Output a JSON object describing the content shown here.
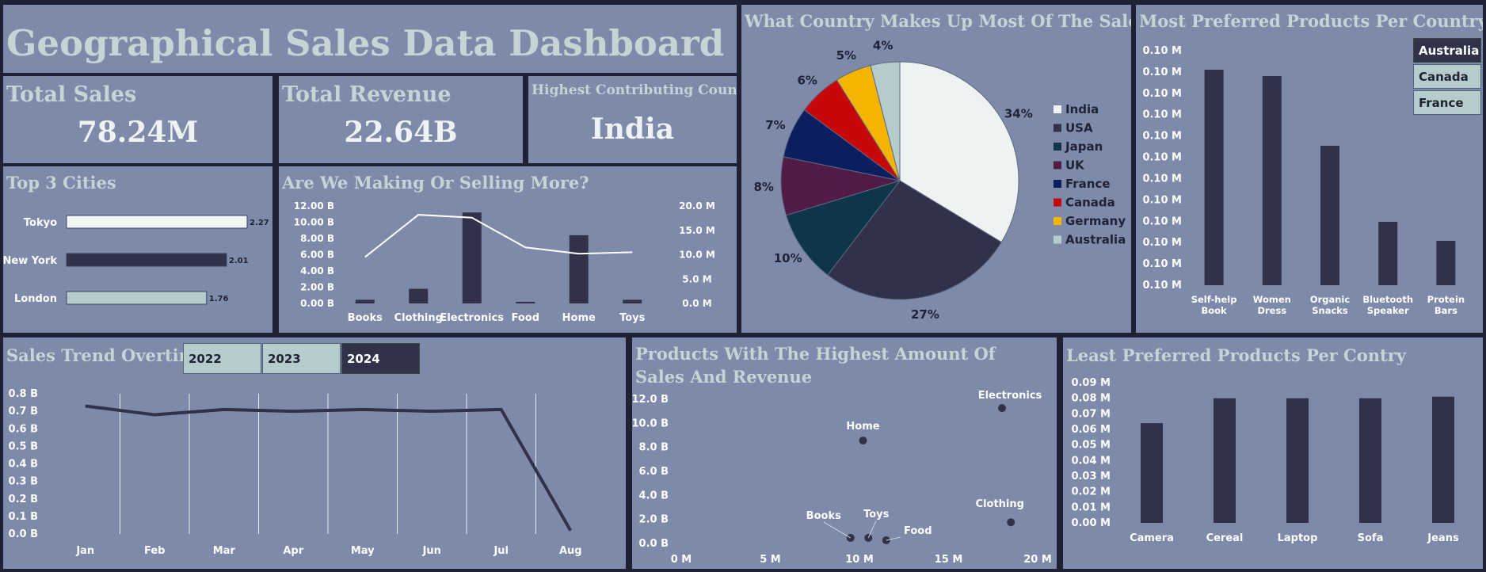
{
  "dashboard_title": "Geographical Sales Data Dashboard",
  "kpis": {
    "total_sales": {
      "label": "Total Sales",
      "value": "78.24M"
    },
    "total_revenue": {
      "label": "Total Revenue",
      "value": "22.64B"
    },
    "top_country": {
      "label": "Highest Contributing Country",
      "value": "India"
    }
  },
  "colors": {
    "panel": "#7d8aa9",
    "dark_bar": "#31324a",
    "light_bar": "#f4f6f6",
    "pale_bar": "#b6cbcb",
    "title": "#c6d4d6",
    "background": "#1f2234"
  },
  "panel_titles": {
    "top_cities": "Top 3 Cities",
    "making_selling": "Are We Making Or Selling More?",
    "country_share": "What Country Makes Up Most Of The Sales?",
    "preferred": "Most Preferred Products Per Country",
    "trend": "Sales Trend Overtime",
    "scatter": "Products With The Highest Amount Of Sales And Revenue",
    "least": "Least Preferred Products Per Contry"
  },
  "year_slicer": {
    "options": [
      "2022",
      "2023",
      "2024"
    ],
    "selected": "2024"
  },
  "country_slicer": {
    "options": [
      "Australia",
      "Canada",
      "France"
    ],
    "selected": "Australia"
  },
  "chart_data": [
    {
      "id": "top_cities",
      "type": "bar",
      "orientation": "horizontal",
      "categories": [
        "Tokyo",
        "New York",
        "London"
      ],
      "values": [
        2.27,
        2.01,
        1.76
      ],
      "value_labels": [
        "2.27",
        "2.01",
        "1.76"
      ],
      "bar_colors": [
        "#f4f6f6",
        "#31324a",
        "#b6cbcb"
      ],
      "xlim": [
        0,
        2.27
      ]
    },
    {
      "id": "making_selling",
      "type": "bar",
      "categories": [
        "Books",
        "Clothing",
        "Electronics",
        "Food",
        "Home",
        "Toys"
      ],
      "series": [
        {
          "axis": "left",
          "kind": "bar",
          "values": [
            0.45,
            1.8,
            11.2,
            0.2,
            8.4,
            0.45
          ]
        },
        {
          "axis": "right",
          "kind": "line",
          "values": [
            9.5,
            18.2,
            17.6,
            11.5,
            10.2,
            10.5
          ]
        }
      ],
      "y_left": {
        "ticks": [
          "0.00 B",
          "2.00 B",
          "4.00 B",
          "6.00 B",
          "8.00 B",
          "10.00 B",
          "12.00 B"
        ],
        "lim": [
          0,
          12
        ]
      },
      "y_right": {
        "ticks": [
          "0.0 M",
          "5.0 M",
          "10.0 M",
          "15.0 M",
          "20.0 M"
        ],
        "lim": [
          0,
          20
        ]
      }
    },
    {
      "id": "country_share",
      "type": "pie",
      "labels": [
        "India",
        "USA",
        "Japan",
        "UK",
        "France",
        "Canada",
        "Germany",
        "Australia"
      ],
      "values": [
        34,
        27,
        10,
        8,
        7,
        6,
        5,
        4
      ],
      "value_labels": [
        "34%",
        "27%",
        "10%",
        "8%",
        "7%",
        "6%",
        "5%",
        "4%"
      ],
      "colors": [
        "#eef2f2",
        "#31324a",
        "#0f3548",
        "#521b45",
        "#0b1f60",
        "#c8070b",
        "#f5b400",
        "#b6cbcb"
      ],
      "legend": "right"
    },
    {
      "id": "preferred",
      "type": "bar",
      "categories": [
        "Self-help Book",
        "Women Dress",
        "Organic Snacks",
        "Bluetooth Speaker",
        "Protein Bars"
      ],
      "values": [
        0.1027,
        0.1026,
        0.1015,
        0.1003,
        0.1
      ],
      "ytick_labels": [
        "0.10 M",
        "0.10 M",
        "0.10 M",
        "0.10 M",
        "0.10 M",
        "0.10 M",
        "0.10 M",
        "0.10 M",
        "0.10 M",
        "0.10 M",
        "0.10 M",
        "0.10 M"
      ],
      "ylim": [
        0.0993,
        0.103
      ]
    },
    {
      "id": "trend",
      "type": "line",
      "categories": [
        "Jan",
        "Feb",
        "Mar",
        "Apr",
        "May",
        "Jun",
        "Jul",
        "Aug"
      ],
      "values": [
        0.73,
        0.68,
        0.71,
        0.7,
        0.71,
        0.7,
        0.71,
        0.02
      ],
      "yticks": [
        "0.0 B",
        "0.1 B",
        "0.2 B",
        "0.3 B",
        "0.4 B",
        "0.5 B",
        "0.6 B",
        "0.7 B",
        "0.8 B"
      ],
      "ylim": [
        0,
        0.8
      ],
      "grid": "vertical"
    },
    {
      "id": "scatter",
      "type": "scatter",
      "points": [
        {
          "label": "Electronics",
          "x": 18.0,
          "y": 11.2
        },
        {
          "label": "Home",
          "x": 10.2,
          "y": 8.5
        },
        {
          "label": "Clothing",
          "x": 18.5,
          "y": 1.7
        },
        {
          "label": "Books",
          "x": 9.5,
          "y": 0.4
        },
        {
          "label": "Toys",
          "x": 10.5,
          "y": 0.4
        },
        {
          "label": "Food",
          "x": 11.5,
          "y": 0.2
        }
      ],
      "xticks": [
        "0 M",
        "5 M",
        "10 M",
        "15 M",
        "20 M"
      ],
      "yticks": [
        "0.0 B",
        "2.0 B",
        "4.0 B",
        "6.0 B",
        "8.0 B",
        "10.0 B",
        "12.0 B"
      ],
      "xlim": [
        0,
        20
      ],
      "ylim": [
        0,
        12
      ]
    },
    {
      "id": "least",
      "type": "bar",
      "categories": [
        "Camera",
        "Cereal",
        "Laptop",
        "Sofa",
        "Jeans"
      ],
      "values": [
        0.064,
        0.08,
        0.08,
        0.08,
        0.081
      ],
      "yticks": [
        "0.00 M",
        "0.01 M",
        "0.02 M",
        "0.03 M",
        "0.04 M",
        "0.05 M",
        "0.06 M",
        "0.07 M",
        "0.08 M",
        "0.09 M"
      ],
      "ylim": [
        0,
        0.09
      ]
    }
  ]
}
